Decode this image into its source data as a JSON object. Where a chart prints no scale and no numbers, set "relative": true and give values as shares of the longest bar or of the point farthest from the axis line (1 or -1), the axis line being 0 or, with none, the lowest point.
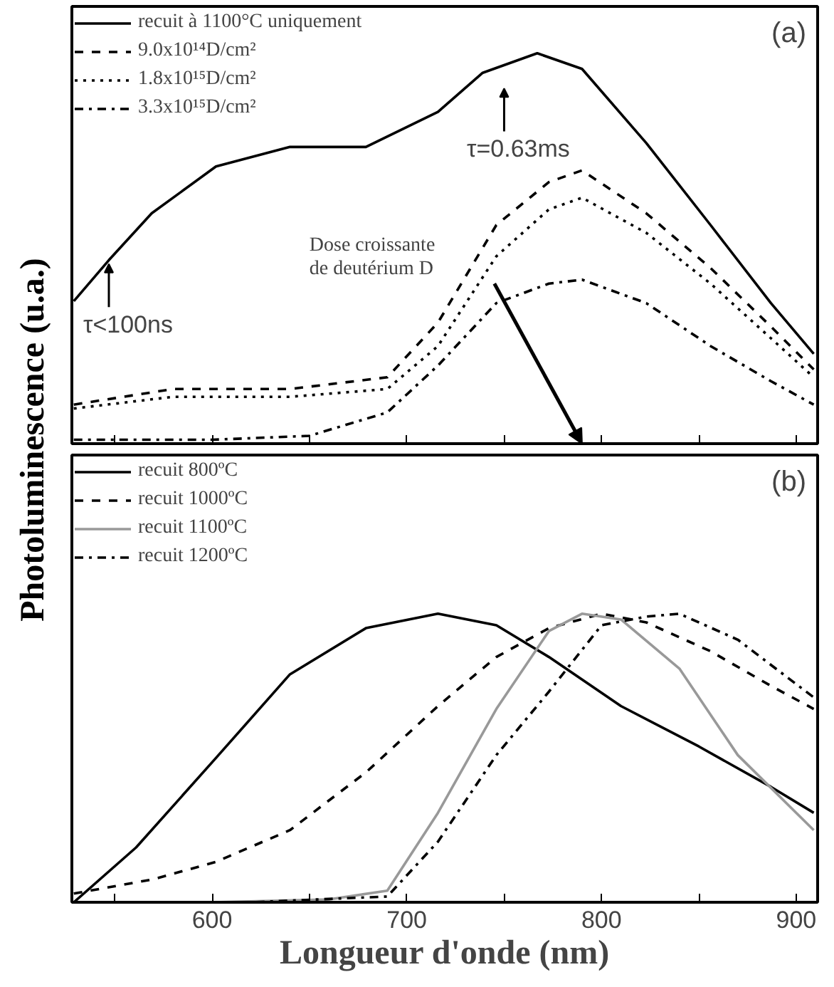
{
  "chart_data": [
    {
      "type": "line",
      "relative": true,
      "ylabel": "Photoluminescence (u.a.)",
      "xlim": [
        528,
        911
      ],
      "xticks": [
        {
          "value": 550,
          "label": null
        },
        600,
        {
          "value": 650,
          "label": null
        },
        700,
        {
          "value": 750,
          "label": null
        },
        800,
        {
          "value": 850,
          "label": null
        },
        900
      ],
      "tick_labels": false,
      "legend": "top left",
      "grid": false,
      "x": [
        529,
        547,
        569,
        602,
        640,
        679,
        716,
        739,
        767,
        790,
        823,
        856,
        887,
        909
      ],
      "series": [
        {
          "name": "recuit à 1100°C uniquement",
          "color": "#000000",
          "line_style": "solid",
          "values": [
            0.365,
            0.47,
            0.59,
            0.71,
            0.76,
            0.76,
            0.85,
            0.95,
            1.0,
            0.96,
            0.77,
            0.56,
            0.36,
            0.23
          ]
        },
        {
          "name": "9.0x10¹⁴D/cm²",
          "color": "#000000",
          "line_style": "dashed",
          "x": [
            529,
            580,
            640,
            690,
            716,
            746,
            773,
            790,
            823,
            856,
            887,
            909
          ],
          "values": [
            0.1,
            0.14,
            0.14,
            0.17,
            0.31,
            0.56,
            0.67,
            0.7,
            0.59,
            0.45,
            0.3,
            0.19
          ]
        },
        {
          "name": "1.8x10¹⁵D/cm²",
          "color": "#000000",
          "line_style": "dotted",
          "x": [
            529,
            580,
            640,
            690,
            716,
            746,
            773,
            790,
            823,
            856,
            887,
            909
          ],
          "values": [
            0.09,
            0.12,
            0.12,
            0.14,
            0.25,
            0.48,
            0.6,
            0.63,
            0.54,
            0.41,
            0.27,
            0.17
          ]
        },
        {
          "name": "3.3x10¹⁵D/cm²",
          "color": "#000000",
          "line_style": "dashdot",
          "x": [
            529,
            600,
            650,
            690,
            716,
            746,
            773,
            790,
            823,
            856,
            887,
            909
          ],
          "values": [
            0.01,
            0.01,
            0.02,
            0.08,
            0.2,
            0.36,
            0.41,
            0.42,
            0.36,
            0.25,
            0.16,
            0.1
          ]
        }
      ],
      "annotations": [
        "(a)",
        {
          "text": "τ<100ns",
          "x": 547,
          "y": 0.47
        },
        "τ=0.63ms",
        "Dose croissante\nde deutérium D"
      ]
    },
    {
      "type": "line",
      "relative": true,
      "xlabel": "Longueur d'onde (nm)",
      "xlim": [
        528,
        911
      ],
      "xticks": [
        {
          "value": 550,
          "label": null
        },
        600,
        {
          "value": 650,
          "label": null
        },
        700,
        {
          "value": 750,
          "label": null
        },
        800,
        {
          "value": 850,
          "label": null
        },
        900
      ],
      "tick_labels": "x",
      "legend": "top left",
      "grid": false,
      "series": [
        {
          "name": "recuit 800ºC",
          "color": "#000000",
          "line_style": "solid",
          "x": [
            529,
            561,
            602,
            640,
            679,
            716,
            746,
            773,
            810,
            850,
            887,
            909
          ],
          "values": [
            0.0,
            0.19,
            0.5,
            0.79,
            0.95,
            1.0,
            0.96,
            0.85,
            0.68,
            0.54,
            0.4,
            0.31
          ]
        },
        {
          "name": "recuit 1000ºC",
          "color": "#000000",
          "line_style": "dashed",
          "x": [
            529,
            570,
            602,
            640,
            679,
            716,
            746,
            773,
            800,
            823,
            856,
            887,
            909
          ],
          "values": [
            0.03,
            0.08,
            0.14,
            0.25,
            0.45,
            0.68,
            0.85,
            0.95,
            1.0,
            0.97,
            0.87,
            0.75,
            0.67
          ]
        },
        {
          "name": "recuit 1100ºC",
          "color": "#999999",
          "line_style": "solid",
          "x": [
            529,
            600,
            660,
            690,
            716,
            746,
            773,
            790,
            810,
            840,
            870,
            909
          ],
          "values": [
            0.0,
            0.0,
            0.01,
            0.04,
            0.31,
            0.67,
            0.94,
            1.0,
            0.98,
            0.81,
            0.51,
            0.25
          ]
        },
        {
          "name": "recuit 1200ºC",
          "color": "#000000",
          "line_style": "dashdot",
          "x": [
            529,
            620,
            690,
            716,
            746,
            773,
            800,
            823,
            840,
            870,
            909
          ],
          "values": [
            0.0,
            0.0,
            0.02,
            0.21,
            0.51,
            0.73,
            0.96,
            0.99,
            1.0,
            0.91,
            0.71
          ]
        }
      ],
      "annotations": [
        "(b)"
      ]
    }
  ]
}
